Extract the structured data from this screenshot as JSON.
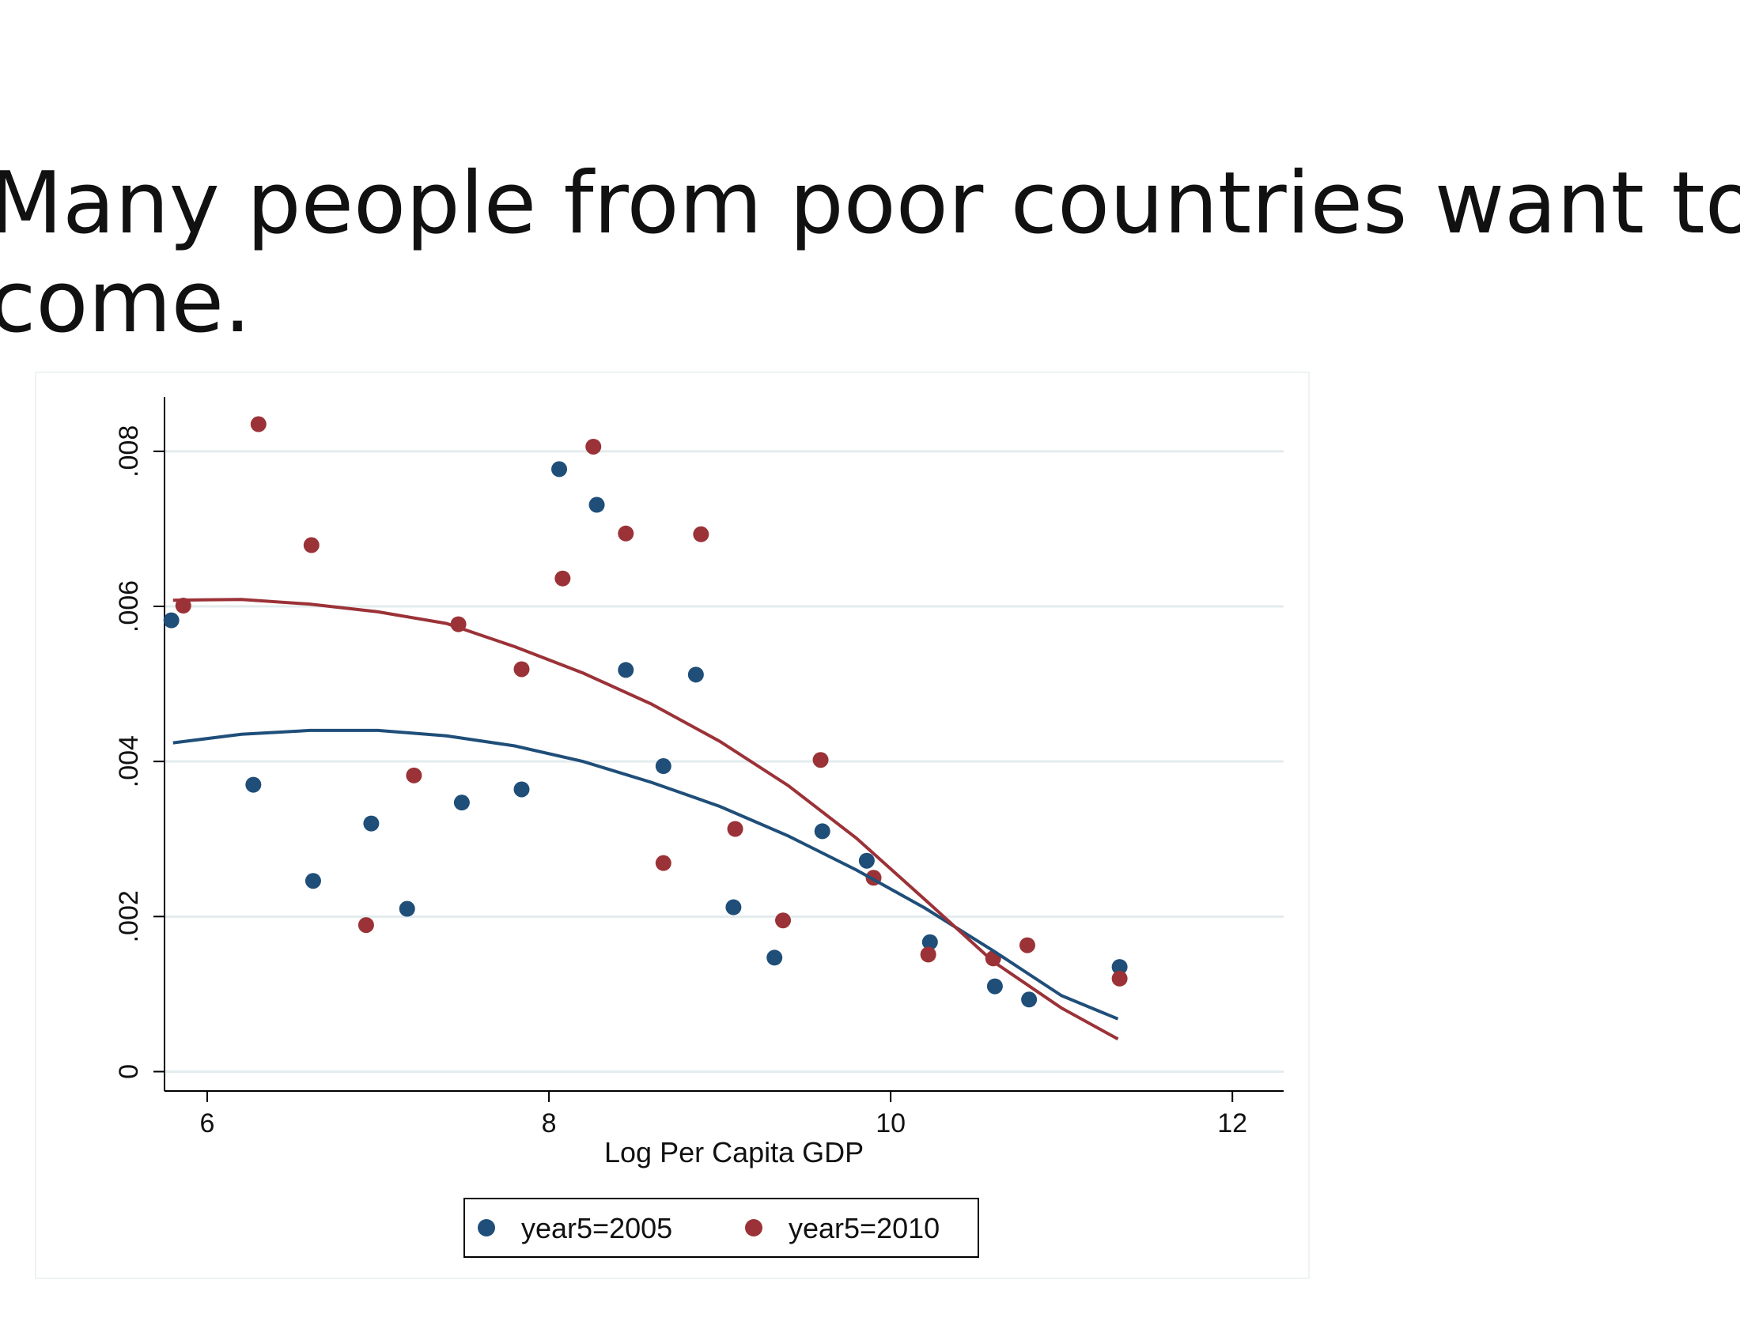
{
  "slide": {
    "title_line1": "Many people from poor countries want to",
    "title_line2": "come."
  },
  "chart_data": {
    "type": "scatter",
    "xlabel": "Log Per Capita GDP",
    "ylabel": "",
    "xlim": [
      5.75,
      12.3
    ],
    "ylim": [
      -0.00025,
      0.0086
    ],
    "x_ticks": [
      6,
      8,
      10,
      12
    ],
    "x_tick_labels": [
      "6",
      "8",
      "10",
      "12"
    ],
    "y_ticks": [
      0,
      0.002,
      0.004,
      0.006,
      0.008
    ],
    "y_tick_labels": [
      "0",
      ".002",
      ".004",
      ".006",
      ".008"
    ],
    "grid": true,
    "legend_position": "bottom-center",
    "series": [
      {
        "name": "year5=2005",
        "color": "#1f4e79",
        "points": [
          [
            5.79,
            0.00582
          ],
          [
            6.27,
            0.0037
          ],
          [
            6.62,
            0.00246
          ],
          [
            6.96,
            0.0032
          ],
          [
            7.17,
            0.0021
          ],
          [
            7.49,
            0.00347
          ],
          [
            7.84,
            0.00364
          ],
          [
            8.06,
            0.00777
          ],
          [
            8.28,
            0.00731
          ],
          [
            8.45,
            0.00518
          ],
          [
            8.67,
            0.00394
          ],
          [
            8.86,
            0.00512
          ],
          [
            9.08,
            0.00212
          ],
          [
            9.32,
            0.00147
          ],
          [
            9.6,
            0.0031
          ],
          [
            9.86,
            0.00272
          ],
          [
            10.23,
            0.00167
          ],
          [
            10.61,
            0.0011
          ],
          [
            10.81,
            0.00093
          ],
          [
            11.34,
            0.00135
          ]
        ],
        "fit": [
          [
            5.8,
            0.00424
          ],
          [
            6.2,
            0.00435
          ],
          [
            6.6,
            0.0044
          ],
          [
            7.0,
            0.0044
          ],
          [
            7.4,
            0.00433
          ],
          [
            7.8,
            0.0042
          ],
          [
            8.2,
            0.004
          ],
          [
            8.6,
            0.00373
          ],
          [
            9.0,
            0.00342
          ],
          [
            9.4,
            0.00304
          ],
          [
            9.8,
            0.0026
          ],
          [
            10.2,
            0.00211
          ],
          [
            10.6,
            0.00156
          ],
          [
            11.0,
            0.00098
          ],
          [
            11.33,
            0.00068
          ]
        ]
      },
      {
        "name": "year5=2010",
        "color": "#9b3237",
        "points": [
          [
            5.86,
            0.00601
          ],
          [
            6.3,
            0.00835
          ],
          [
            6.61,
            0.00679
          ],
          [
            6.93,
            0.00189
          ],
          [
            7.21,
            0.00382
          ],
          [
            7.47,
            0.00577
          ],
          [
            7.84,
            0.00519
          ],
          [
            8.08,
            0.00636
          ],
          [
            8.26,
            0.00806
          ],
          [
            8.45,
            0.00694
          ],
          [
            8.67,
            0.00269
          ],
          [
            8.89,
            0.00693
          ],
          [
            9.09,
            0.00313
          ],
          [
            9.37,
            0.00195
          ],
          [
            9.59,
            0.00402
          ],
          [
            9.9,
            0.0025
          ],
          [
            10.22,
            0.00151
          ],
          [
            10.6,
            0.00146
          ],
          [
            10.8,
            0.00163
          ],
          [
            11.34,
            0.0012
          ]
        ],
        "fit": [
          [
            5.8,
            0.00608
          ],
          [
            6.2,
            0.00609
          ],
          [
            6.6,
            0.00603
          ],
          [
            7.0,
            0.00593
          ],
          [
            7.4,
            0.00578
          ],
          [
            7.8,
            0.00548
          ],
          [
            8.2,
            0.00514
          ],
          [
            8.6,
            0.00474
          ],
          [
            9.0,
            0.00426
          ],
          [
            9.4,
            0.00369
          ],
          [
            9.8,
            0.00301
          ],
          [
            10.2,
            0.00222
          ],
          [
            10.6,
            0.00142
          ],
          [
            11.0,
            0.00082
          ],
          [
            11.33,
            0.00042
          ]
        ]
      }
    ]
  }
}
